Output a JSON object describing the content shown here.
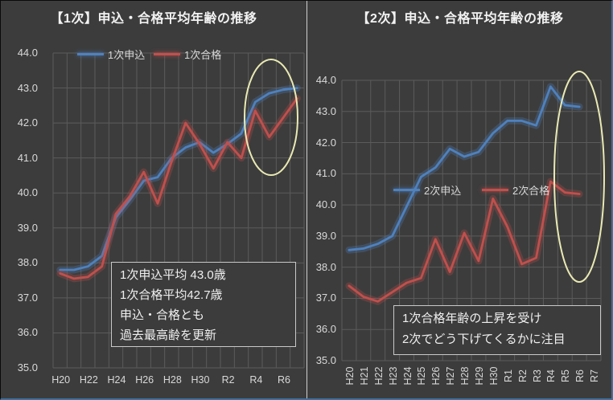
{
  "page": {
    "colors": {
      "background": "#3c3c3c",
      "gridline": "#5b5b5b",
      "text": "#d9d9d9",
      "divider": "#cfcfcf",
      "accent_border": "#41719c",
      "apply_blue": "#4f81bd",
      "pass_red": "#c0504d",
      "highlight_ellipse": "#e9e9b4"
    }
  },
  "chart_data": [
    {
      "type": "line",
      "title": "【1次】申込・合格平均年齢の推移",
      "categories": [
        "H20",
        "H21",
        "H22",
        "H23",
        "H24",
        "H25",
        "H26",
        "H27",
        "H28",
        "H29",
        "H30",
        "R1",
        "R2",
        "R3",
        "R4",
        "R5",
        "R6",
        "R7"
      ],
      "x_tick_labels_shown": [
        "H20",
        "H22",
        "H24",
        "H26",
        "H28",
        "H30",
        "R2",
        "R4",
        "R6"
      ],
      "y_tick_labels": [
        "44.0",
        "43.0",
        "42.0",
        "41.0",
        "40.0",
        "39.0",
        "38.0",
        "37.0",
        "36.0",
        "35.0"
      ],
      "ylim": [
        35.0,
        44.0
      ],
      "y_step": 1.0,
      "grid": true,
      "legend_position": "top-inside",
      "series": [
        {
          "name": "1次申込",
          "color": "#4f81bd",
          "values": [
            37.8,
            37.8,
            37.9,
            38.2,
            39.3,
            39.8,
            40.35,
            40.45,
            41.0,
            41.3,
            41.45,
            41.15,
            41.4,
            41.7,
            42.6,
            42.85,
            42.95,
            43.0
          ]
        },
        {
          "name": "1次合格",
          "color": "#c0504d",
          "values": [
            37.7,
            37.55,
            37.6,
            37.9,
            39.4,
            39.9,
            40.6,
            39.7,
            40.9,
            42.0,
            41.4,
            40.7,
            41.45,
            41.0,
            42.35,
            41.6,
            42.15,
            42.7
          ]
        }
      ],
      "annotation": {
        "lines": [
          "1次申込平均 43.0歳",
          "1次合格平均42.7歳",
          "申込・合格とも",
          "過去最高齢を更新"
        ]
      },
      "highlight_ellipse_color": "#e9e9b4"
    },
    {
      "type": "line",
      "title": "【2次】申込・合格平均年齢の推移",
      "categories": [
        "H20",
        "H21",
        "H22",
        "H23",
        "H24",
        "H25",
        "H26",
        "H27",
        "H28",
        "H29",
        "H30",
        "R1",
        "R2",
        "R3",
        "R4",
        "R5",
        "R6",
        "R7"
      ],
      "x_tick_labels_shown": [
        "H20",
        "H21",
        "H22",
        "H23",
        "H24",
        "H25",
        "H26",
        "H27",
        "H28",
        "H29",
        "H30",
        "R1",
        "R2",
        "R3",
        "R4",
        "R5",
        "R6",
        "R7"
      ],
      "y_tick_labels": [
        "44.0",
        "43.0",
        "42.0",
        "41.0",
        "40.0",
        "39.0",
        "38.0",
        "37.0",
        "36.0",
        "35.0"
      ],
      "ylim": [
        35.0,
        44.0
      ],
      "y_step": 1.0,
      "grid": true,
      "legend_position": "inside-middle",
      "series": [
        {
          "name": "2次申込",
          "color": "#4f81bd",
          "values": [
            38.55,
            38.6,
            38.75,
            39.0,
            39.95,
            40.9,
            41.2,
            41.8,
            41.55,
            41.7,
            42.3,
            42.7,
            42.7,
            42.55,
            43.8,
            43.2,
            43.15
          ]
        },
        {
          "name": "2次合格",
          "color": "#c0504d",
          "values": [
            37.4,
            37.05,
            36.9,
            37.2,
            37.5,
            37.65,
            38.9,
            37.85,
            39.1,
            38.2,
            40.2,
            39.3,
            38.1,
            38.3,
            40.75,
            40.4,
            40.35
          ]
        }
      ],
      "annotation": {
        "lines": [
          "1次合格年齢の上昇を受け",
          "2次でどう下げてくるかに注目"
        ]
      },
      "highlight_ellipse_color": "#e9e9b4"
    }
  ]
}
